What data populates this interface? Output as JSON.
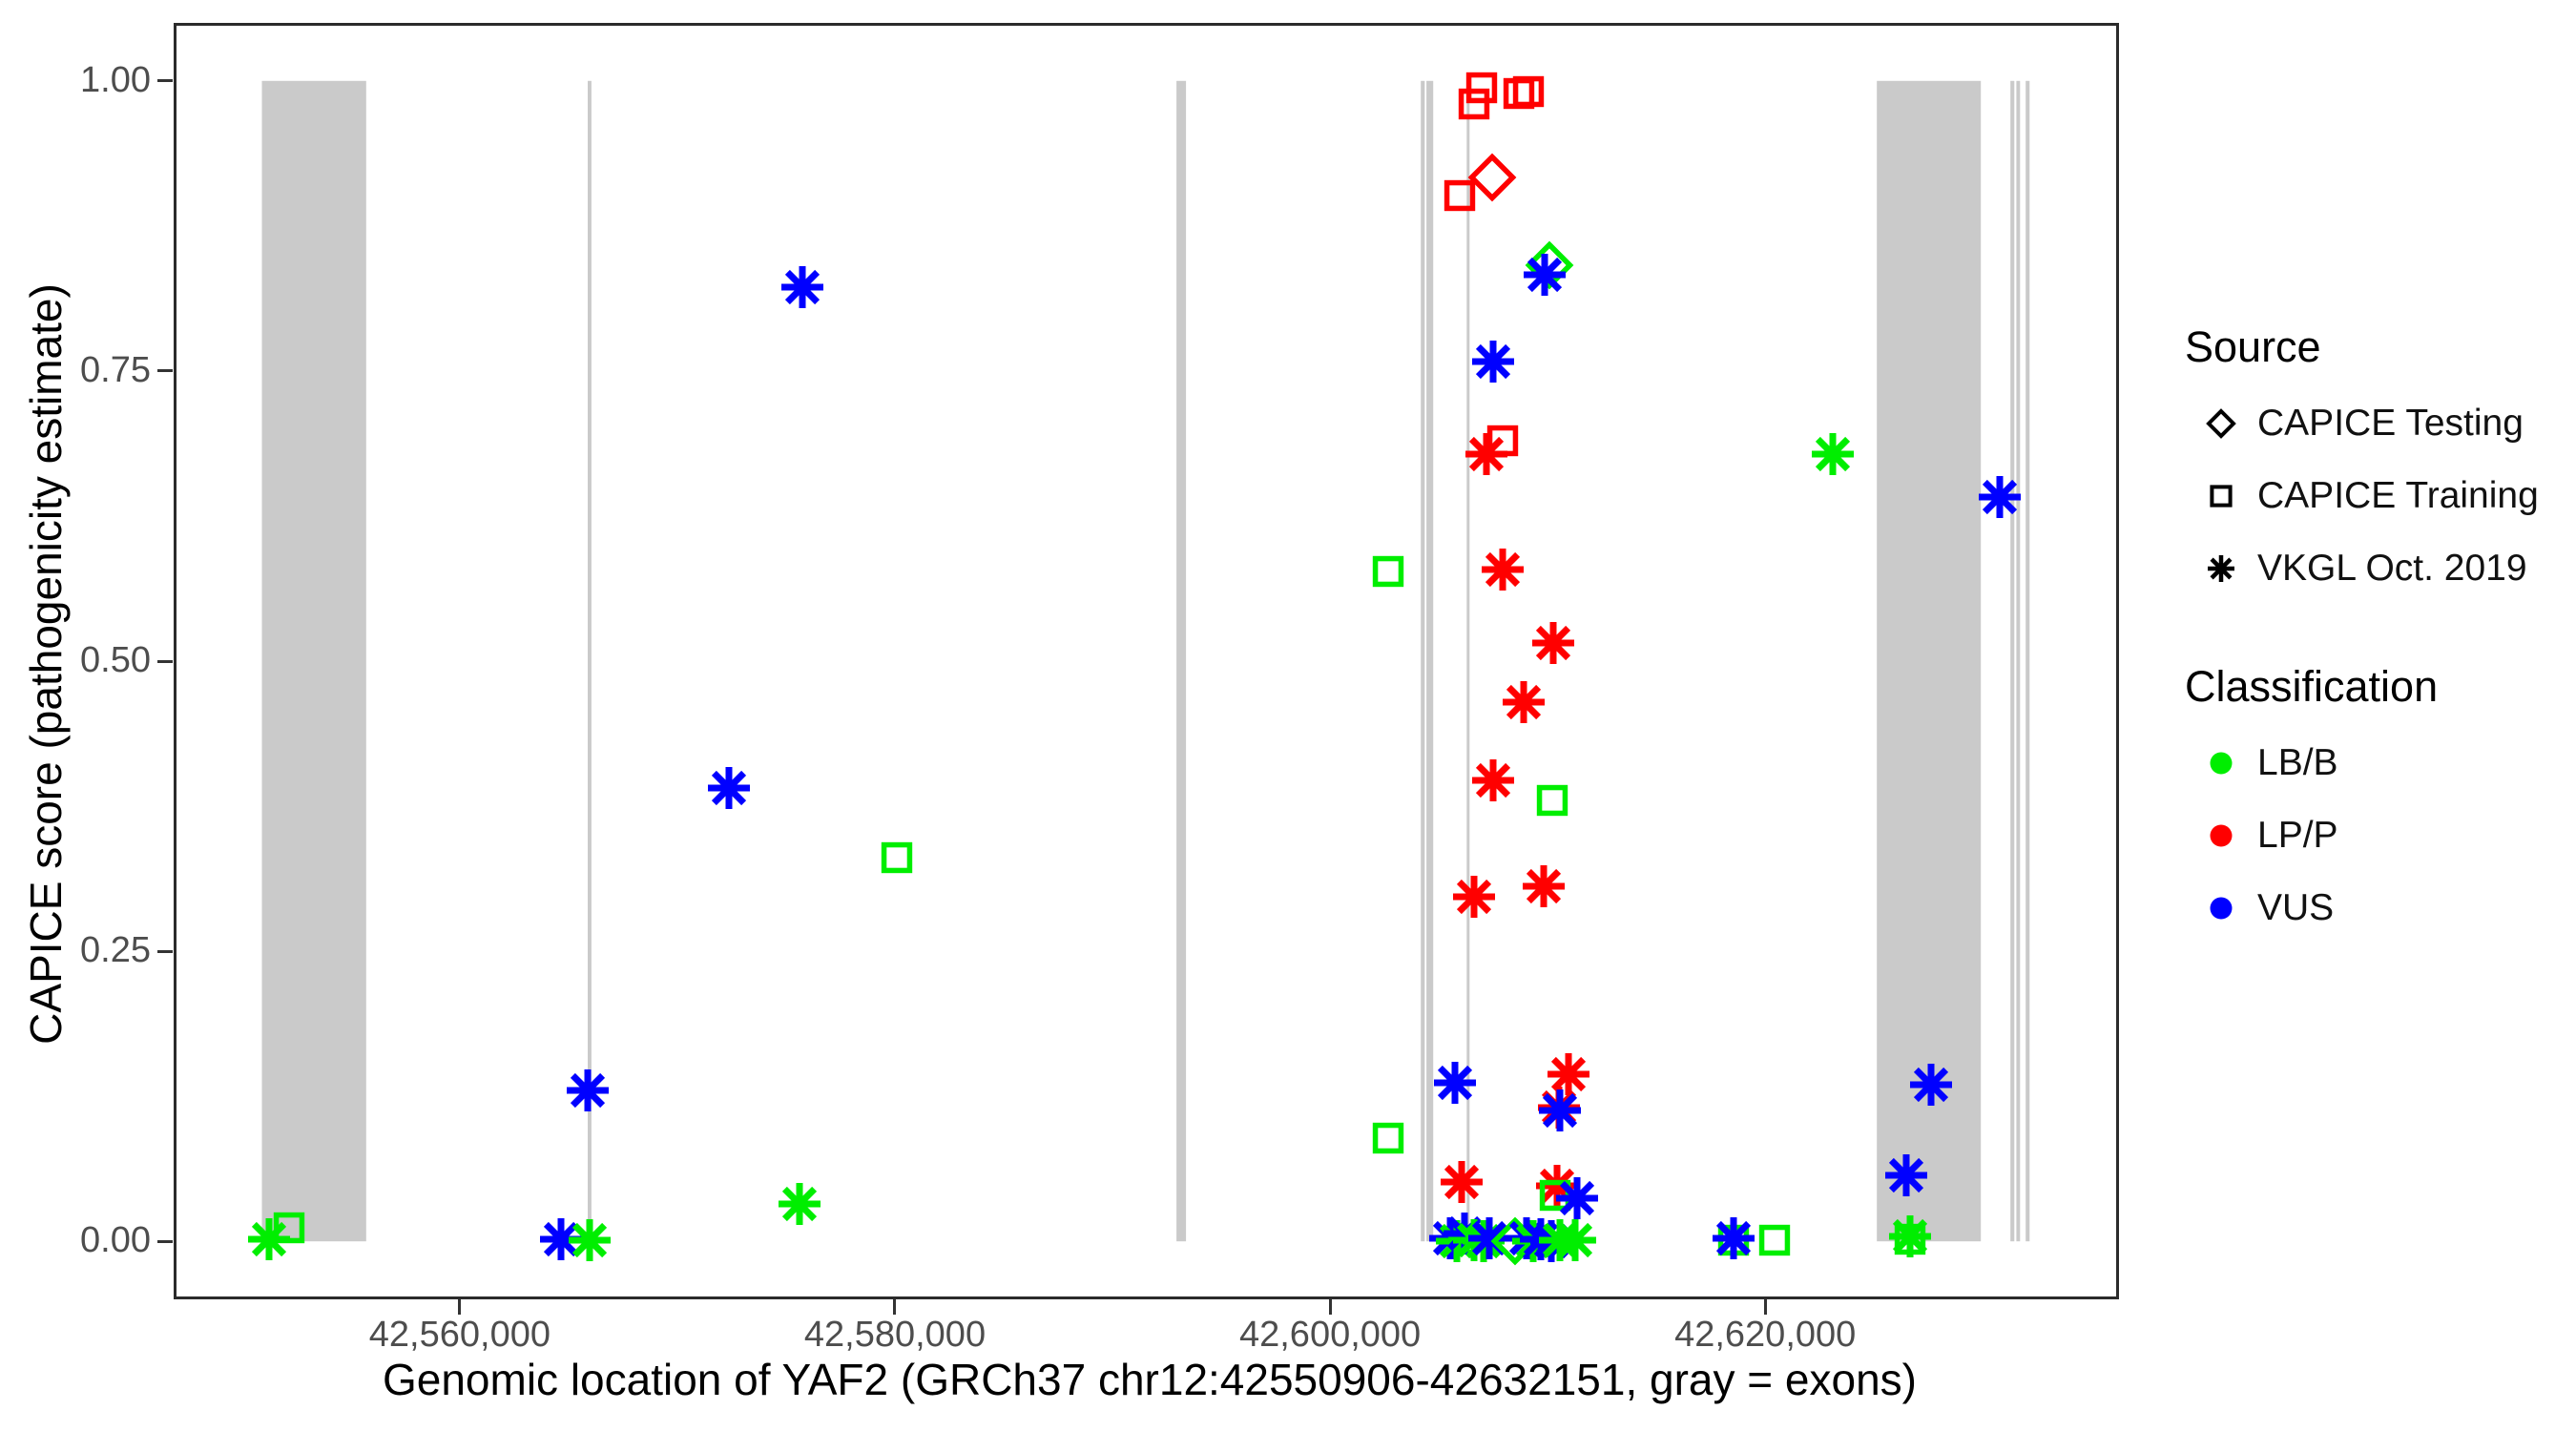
{
  "figure": {
    "ylabel": "CAPICE score (pathogenicity estimate)",
    "xlabel": "Genomic location of YAF2 (GRCh37 chr12:42550906-42632151, gray = exons)"
  },
  "legend": {
    "source": {
      "title": "Source",
      "items": [
        {
          "label": "CAPICE Testing",
          "marker": "diamond"
        },
        {
          "label": "CAPICE Training",
          "marker": "square"
        },
        {
          "label": "VKGL Oct. 2019",
          "marker": "asterisk"
        }
      ]
    },
    "classification": {
      "title": "Classification",
      "items": [
        {
          "label": "LB/B",
          "color": "#00EE00"
        },
        {
          "label": "LP/P",
          "color": "#FF0000"
        },
        {
          "label": "VUS",
          "color": "#0000FF"
        }
      ]
    }
  },
  "colors": {
    "exon": "#CACACA",
    "axis_text": "#4D4D4D",
    "axis_title": "#000000",
    "panel_border": "#2B2B2B",
    "legend_glyph": "#000000"
  },
  "chart_data": {
    "type": "scatter",
    "title": "",
    "xlabel": "Genomic location of YAF2 (GRCh37 chr12:42550906-42632151, gray = exons)",
    "ylabel": "CAPICE score (pathogenicity estimate)",
    "gene": {
      "name": "YAF2",
      "assembly": "GRCh37",
      "region": "chr12:42550906-42632151"
    },
    "xlim": [
      42546850,
      42636260
    ],
    "ylim": [
      -0.05,
      1.05
    ],
    "grid": false,
    "legend_position": "right",
    "x_ticks": [
      {
        "value": 42560000,
        "label": "42,560,000"
      },
      {
        "value": 42580000,
        "label": "42,580,000"
      },
      {
        "value": 42600000,
        "label": "42,600,000"
      },
      {
        "value": 42620000,
        "label": "42,620,000"
      }
    ],
    "y_ticks": [
      {
        "value": 0.0,
        "label": "0.00"
      },
      {
        "value": 0.25,
        "label": "0.25"
      },
      {
        "value": 0.5,
        "label": "0.50"
      },
      {
        "value": 0.75,
        "label": "0.75"
      },
      {
        "value": 1.0,
        "label": "1.00"
      }
    ],
    "exons": [
      [
        42550906,
        42555700
      ],
      [
        42565880,
        42566050
      ],
      [
        42592940,
        42593380
      ],
      [
        42604170,
        42604350
      ],
      [
        42604430,
        42604740
      ],
      [
        42606280,
        42606410
      ],
      [
        42625130,
        42629910
      ],
      [
        42631270,
        42631450
      ],
      [
        42631540,
        42631710
      ],
      [
        42631970,
        42632151
      ]
    ],
    "points": [
      {
        "source": "VKGL Oct. 2019",
        "classification": "LB/B",
        "pos": 42551250,
        "score": 0.002
      },
      {
        "source": "CAPICE Training",
        "classification": "LB/B",
        "pos": 42552150,
        "score": 0.012
      },
      {
        "source": "VKGL Oct. 2019",
        "classification": "VUS",
        "pos": 42564650,
        "score": 0.002
      },
      {
        "source": "VKGL Oct. 2019",
        "classification": "LB/B",
        "pos": 42565950,
        "score": 0.001
      },
      {
        "source": "VKGL Oct. 2019",
        "classification": "VUS",
        "pos": 42565900,
        "score": 0.13
      },
      {
        "source": "VKGL Oct. 2019",
        "classification": "VUS",
        "pos": 42572350,
        "score": 0.391
      },
      {
        "source": "VKGL Oct. 2019",
        "classification": "LB/B",
        "pos": 42575600,
        "score": 0.032
      },
      {
        "source": "VKGL Oct. 2019",
        "classification": "VUS",
        "pos": 42575750,
        "score": 0.822
      },
      {
        "source": "CAPICE Training",
        "classification": "LB/B",
        "pos": 42580100,
        "score": 0.331
      },
      {
        "source": "CAPICE Training",
        "classification": "LB/B",
        "pos": 42602650,
        "score": 0.577
      },
      {
        "source": "CAPICE Training",
        "classification": "LB/B",
        "pos": 42602650,
        "score": 0.089
      },
      {
        "source": "CAPICE Training",
        "classification": "LP/P",
        "pos": 42605950,
        "score": 0.901
      },
      {
        "source": "CAPICE Training",
        "classification": "LP/P",
        "pos": 42606600,
        "score": 0.98
      },
      {
        "source": "CAPICE Training",
        "classification": "LP/P",
        "pos": 42606950,
        "score": 0.994
      },
      {
        "source": "CAPICE Training",
        "classification": "LP/P",
        "pos": 42608700,
        "score": 0.989
      },
      {
        "source": "CAPICE Training",
        "classification": "LP/P",
        "pos": 42609100,
        "score": 0.991
      },
      {
        "source": "CAPICE Testing",
        "classification": "LP/P",
        "pos": 42607450,
        "score": 0.917
      },
      {
        "source": "CAPICE Testing",
        "classification": "LB/B",
        "pos": 42610100,
        "score": 0.841
      },
      {
        "source": "VKGL Oct. 2019",
        "classification": "VUS",
        "pos": 42609850,
        "score": 0.833
      },
      {
        "source": "VKGL Oct. 2019",
        "classification": "VUS",
        "pos": 42607500,
        "score": 0.758
      },
      {
        "source": "VKGL Oct. 2019",
        "classification": "LP/P",
        "pos": 42607200,
        "score": 0.678
      },
      {
        "source": "CAPICE Training",
        "classification": "LP/P",
        "pos": 42607950,
        "score": 0.69
      },
      {
        "source": "VKGL Oct. 2019",
        "classification": "LP/P",
        "pos": 42607950,
        "score": 0.579
      },
      {
        "source": "VKGL Oct. 2019",
        "classification": "LP/P",
        "pos": 42610250,
        "score": 0.516
      },
      {
        "source": "VKGL Oct. 2019",
        "classification": "LP/P",
        "pos": 42608900,
        "score": 0.465
      },
      {
        "source": "VKGL Oct. 2019",
        "classification": "LP/P",
        "pos": 42607500,
        "score": 0.397
      },
      {
        "source": "CAPICE Training",
        "classification": "LB/B",
        "pos": 42610200,
        "score": 0.38
      },
      {
        "source": "VKGL Oct. 2019",
        "classification": "LP/P",
        "pos": 42606600,
        "score": 0.297
      },
      {
        "source": "VKGL Oct. 2019",
        "classification": "LP/P",
        "pos": 42609800,
        "score": 0.306
      },
      {
        "source": "VKGL Oct. 2019",
        "classification": "VUS",
        "pos": 42605750,
        "score": 0.137
      },
      {
        "source": "VKGL Oct. 2019",
        "classification": "LP/P",
        "pos": 42610950,
        "score": 0.144
      },
      {
        "source": "VKGL Oct. 2019",
        "classification": "LP/P",
        "pos": 42610500,
        "score": 0.115
      },
      {
        "source": "VKGL Oct. 2019",
        "classification": "VUS",
        "pos": 42610550,
        "score": 0.113
      },
      {
        "source": "VKGL Oct. 2019",
        "classification": "LP/P",
        "pos": 42606050,
        "score": 0.051
      },
      {
        "source": "VKGL Oct. 2019",
        "classification": "LP/P",
        "pos": 42610450,
        "score": 0.048
      },
      {
        "source": "CAPICE Training",
        "classification": "LB/B",
        "pos": 42610350,
        "score": 0.04
      },
      {
        "source": "VKGL Oct. 2019",
        "classification": "VUS",
        "pos": 42611350,
        "score": 0.037
      },
      {
        "source": "VKGL Oct. 2019",
        "classification": "VUS",
        "pos": 42605500,
        "score": 0.003
      },
      {
        "source": "VKGL Oct. 2019",
        "classification": "LB/B",
        "pos": 42605850,
        "score": 0.0
      },
      {
        "source": "VKGL Oct. 2019",
        "classification": "VUS",
        "pos": 42606200,
        "score": 0.007
      },
      {
        "source": "VKGL Oct. 2019",
        "classification": "LB/B",
        "pos": 42606600,
        "score": 0.001
      },
      {
        "source": "VKGL Oct. 2019",
        "classification": "LB/B",
        "pos": 42607050,
        "score": 0.0
      },
      {
        "source": "VKGL Oct. 2019",
        "classification": "VUS",
        "pos": 42607300,
        "score": 0.003
      },
      {
        "source": "CAPICE Testing",
        "classification": "LB/B",
        "pos": 42608500,
        "score": 0.0
      },
      {
        "source": "VKGL Oct. 2019",
        "classification": "VUS",
        "pos": 42609050,
        "score": 0.003
      },
      {
        "source": "VKGL Oct. 2019",
        "classification": "LB/B",
        "pos": 42609350,
        "score": 0.0
      },
      {
        "source": "VKGL Oct. 2019",
        "classification": "VUS",
        "pos": 42609700,
        "score": 0.002
      },
      {
        "source": "VKGL Oct. 2019",
        "classification": "VUS",
        "pos": 42610150,
        "score": 0.0
      },
      {
        "source": "VKGL Oct. 2019",
        "classification": "LB/B",
        "pos": 42610550,
        "score": 0.001
      },
      {
        "source": "VKGL Oct. 2019",
        "classification": "LB/B",
        "pos": 42611250,
        "score": 0.001
      },
      {
        "source": "CAPICE Training",
        "classification": "LB/B",
        "pos": 42618550,
        "score": 0.001
      },
      {
        "source": "VKGL Oct. 2019",
        "classification": "VUS",
        "pos": 42618550,
        "score": 0.003
      },
      {
        "source": "CAPICE Training",
        "classification": "LB/B",
        "pos": 42620450,
        "score": 0.001
      },
      {
        "source": "VKGL Oct. 2019",
        "classification": "LB/B",
        "pos": 42623100,
        "score": 0.678
      },
      {
        "source": "VKGL Oct. 2019",
        "classification": "VUS",
        "pos": 42627600,
        "score": 0.135
      },
      {
        "source": "VKGL Oct. 2019",
        "classification": "VUS",
        "pos": 42626500,
        "score": 0.057
      },
      {
        "source": "CAPICE Training",
        "classification": "LB/B",
        "pos": 42626650,
        "score": 0.002
      },
      {
        "source": "VKGL Oct. 2019",
        "classification": "LB/B",
        "pos": 42626650,
        "score": 0.004
      },
      {
        "source": "VKGL Oct. 2019",
        "classification": "VUS",
        "pos": 42630800,
        "score": 0.641
      }
    ]
  }
}
